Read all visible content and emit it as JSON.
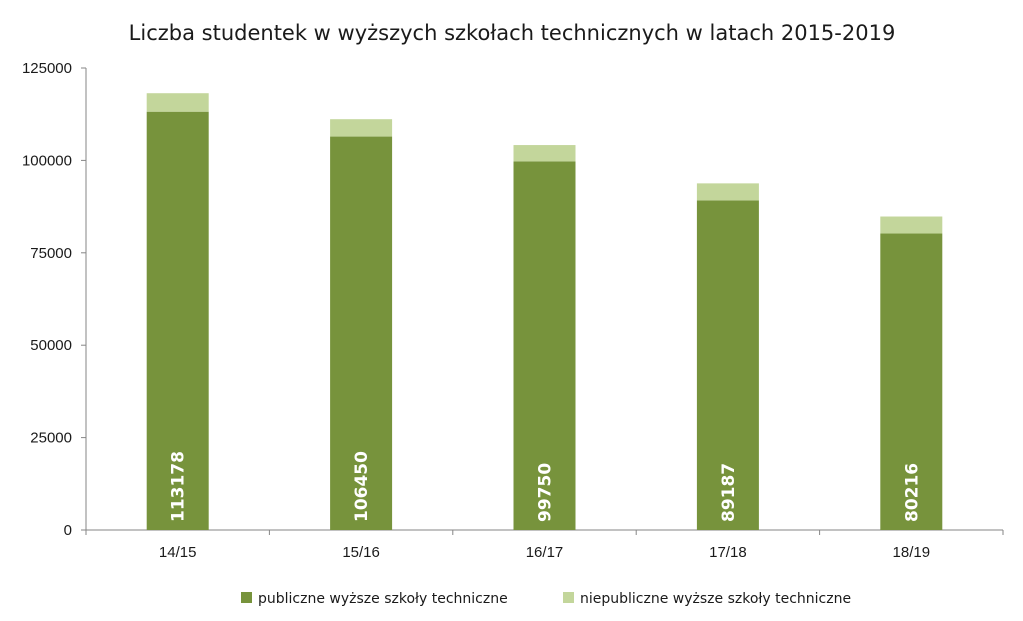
{
  "chart_data": {
    "type": "bar",
    "stacked": true,
    "title": "Liczba studentek w wyższych szkołach technicznych w latach 2015-2019",
    "xlabel": "",
    "ylabel": "",
    "categories": [
      "14/15",
      "15/16",
      "16/17",
      "17/18",
      "18/19"
    ],
    "series": [
      {
        "name": "publiczne wyższe szkoły techniczne",
        "values": [
          113178,
          106450,
          99750,
          89187,
          80216
        ],
        "labels": [
          "113178",
          "106450",
          "99750",
          "89187",
          "80216"
        ],
        "color": "#77933c"
      },
      {
        "name": "niepubliczne wyższe szkoły techniczne",
        "values": [
          5000,
          4700,
          4400,
          4600,
          4600
        ],
        "color": "#c3d69b"
      }
    ],
    "ylim": [
      0,
      125000
    ],
    "yticks": [
      "0",
      "25000",
      "50000",
      "75000",
      "100000",
      "125000"
    ],
    "grid": false,
    "legend_position": "bottom"
  }
}
